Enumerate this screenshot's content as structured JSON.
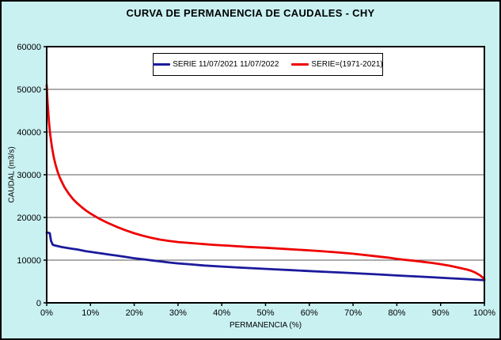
{
  "window": {
    "title": "CURVA DE PERMANENCIA DE CAUDALES - CHY"
  },
  "chart_data": {
    "type": "line",
    "title": "CURVA DE PERMANENCIA DE CAUDALES - CHY",
    "xlabel": "PERMANENCIA (%)",
    "ylabel": "CAUDAL (m3/s)",
    "xlim": [
      0,
      100
    ],
    "ylim": [
      0,
      60000
    ],
    "x_ticks": [
      0,
      10,
      20,
      30,
      40,
      50,
      60,
      70,
      80,
      90,
      100
    ],
    "x_tick_labels": [
      "0%",
      "10%",
      "20%",
      "30%",
      "40%",
      "50%",
      "60%",
      "70%",
      "80%",
      "90%",
      "100%"
    ],
    "y_ticks": [
      0,
      10000,
      20000,
      30000,
      40000,
      50000,
      60000
    ],
    "y_tick_labels": [
      "0",
      "10000",
      "20000",
      "30000",
      "40000",
      "50000",
      "60000"
    ],
    "grid": "horizontal",
    "legend_position": "top-center-inside",
    "colors": {
      "figure_background": "#C9F1F2",
      "plot_background": "#FFFFFF",
      "gridline": "#5A5A5A",
      "axis": "#000000",
      "title_text": "#000000"
    },
    "series": [
      {
        "name": "SERIE 11/07/2021 11/07/2022",
        "color": "#1A1A9C",
        "points": [
          [
            0,
            16500
          ],
          [
            0.4,
            16400
          ],
          [
            0.7,
            16300
          ],
          [
            1,
            14500
          ],
          [
            1.4,
            13600
          ],
          [
            2,
            13400
          ],
          [
            2.6,
            13250
          ],
          [
            3.5,
            13050
          ],
          [
            5,
            12800
          ],
          [
            6,
            12650
          ],
          [
            7,
            12500
          ],
          [
            8,
            12300
          ],
          [
            9,
            12100
          ],
          [
            10,
            11950
          ],
          [
            12,
            11650
          ],
          [
            14,
            11350
          ],
          [
            16,
            11050
          ],
          [
            18,
            10750
          ],
          [
            20,
            10450
          ],
          [
            22,
            10200
          ],
          [
            24,
            9950
          ],
          [
            26,
            9700
          ],
          [
            28,
            9450
          ],
          [
            30,
            9250
          ],
          [
            33,
            9000
          ],
          [
            36,
            8750
          ],
          [
            40,
            8500
          ],
          [
            44,
            8250
          ],
          [
            48,
            8050
          ],
          [
            52,
            7850
          ],
          [
            56,
            7650
          ],
          [
            60,
            7450
          ],
          [
            64,
            7250
          ],
          [
            68,
            7050
          ],
          [
            72,
            6850
          ],
          [
            76,
            6650
          ],
          [
            80,
            6400
          ],
          [
            84,
            6200
          ],
          [
            88,
            6000
          ],
          [
            92,
            5750
          ],
          [
            96,
            5550
          ],
          [
            100,
            5300
          ]
        ]
      },
      {
        "name": "SERIE=(1971-2021)",
        "color": "#EE0000",
        "points": [
          [
            0,
            51000
          ],
          [
            0.2,
            47000
          ],
          [
            0.5,
            42500
          ],
          [
            0.8,
            39500
          ],
          [
            1.2,
            36500
          ],
          [
            1.6,
            34200
          ],
          [
            2,
            32400
          ],
          [
            2.5,
            30700
          ],
          [
            3,
            29300
          ],
          [
            4,
            27200
          ],
          [
            5,
            25600
          ],
          [
            6,
            24300
          ],
          [
            7,
            23300
          ],
          [
            8,
            22400
          ],
          [
            9,
            21600
          ],
          [
            10,
            20900
          ],
          [
            12,
            19700
          ],
          [
            14,
            18700
          ],
          [
            16,
            17800
          ],
          [
            18,
            17000
          ],
          [
            20,
            16300
          ],
          [
            22,
            15700
          ],
          [
            24,
            15200
          ],
          [
            26,
            14800
          ],
          [
            28,
            14500
          ],
          [
            30,
            14250
          ],
          [
            34,
            13900
          ],
          [
            38,
            13600
          ],
          [
            42,
            13350
          ],
          [
            46,
            13100
          ],
          [
            50,
            12900
          ],
          [
            54,
            12650
          ],
          [
            58,
            12400
          ],
          [
            62,
            12150
          ],
          [
            66,
            11850
          ],
          [
            70,
            11500
          ],
          [
            74,
            11050
          ],
          [
            78,
            10600
          ],
          [
            80,
            10300
          ],
          [
            82,
            10050
          ],
          [
            84,
            9850
          ],
          [
            86,
            9600
          ],
          [
            88,
            9350
          ],
          [
            90,
            9050
          ],
          [
            92,
            8700
          ],
          [
            94,
            8250
          ],
          [
            96,
            7800
          ],
          [
            97,
            7500
          ],
          [
            98,
            7050
          ],
          [
            99,
            6450
          ],
          [
            99.6,
            5950
          ],
          [
            100,
            5500
          ]
        ]
      }
    ]
  }
}
